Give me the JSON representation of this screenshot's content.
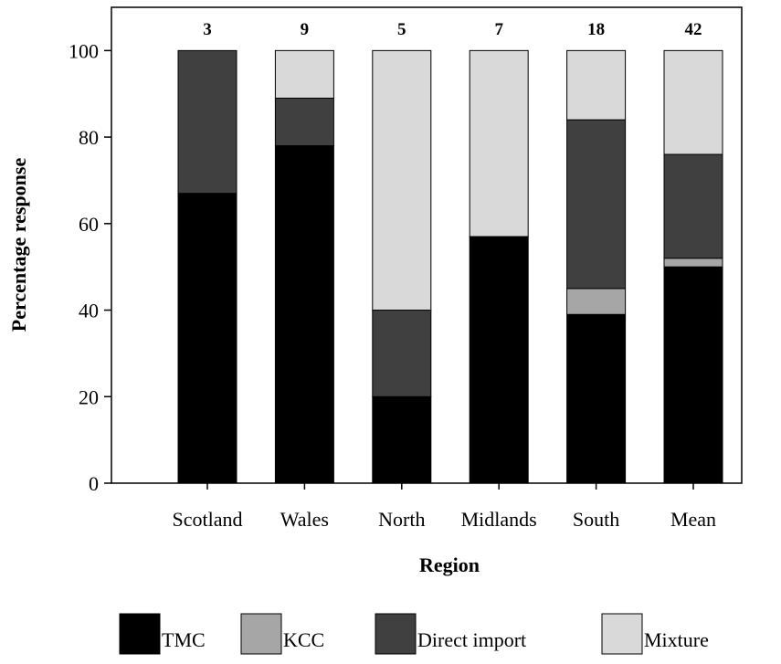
{
  "chart_data": {
    "type": "bar",
    "stacked": true,
    "categories": [
      "Scotland",
      "Wales",
      "North",
      "Midlands",
      "South",
      "Mean"
    ],
    "counts": [
      "3",
      "9",
      "5",
      "7",
      "18",
      "42"
    ],
    "series": [
      {
        "name": "TMC",
        "color": "#000000",
        "values": [
          67,
          78,
          20,
          57,
          39,
          50
        ]
      },
      {
        "name": "KCC",
        "color": "#a6a6a6",
        "values": [
          0,
          0,
          0,
          0,
          6,
          2
        ]
      },
      {
        "name": "Direct import",
        "color": "#404040",
        "values": [
          33,
          11,
          20,
          0,
          39,
          24
        ]
      },
      {
        "name": "Mixture",
        "color": "#d9d9d9",
        "values": [
          0,
          11,
          60,
          43,
          16,
          24
        ]
      }
    ],
    "xlabel": "Region",
    "ylabel": "Percentage response",
    "ylim": [
      0,
      110
    ],
    "yticks": [
      0,
      20,
      40,
      60,
      80,
      100
    ],
    "grid": false,
    "legend_position": "bottom"
  }
}
